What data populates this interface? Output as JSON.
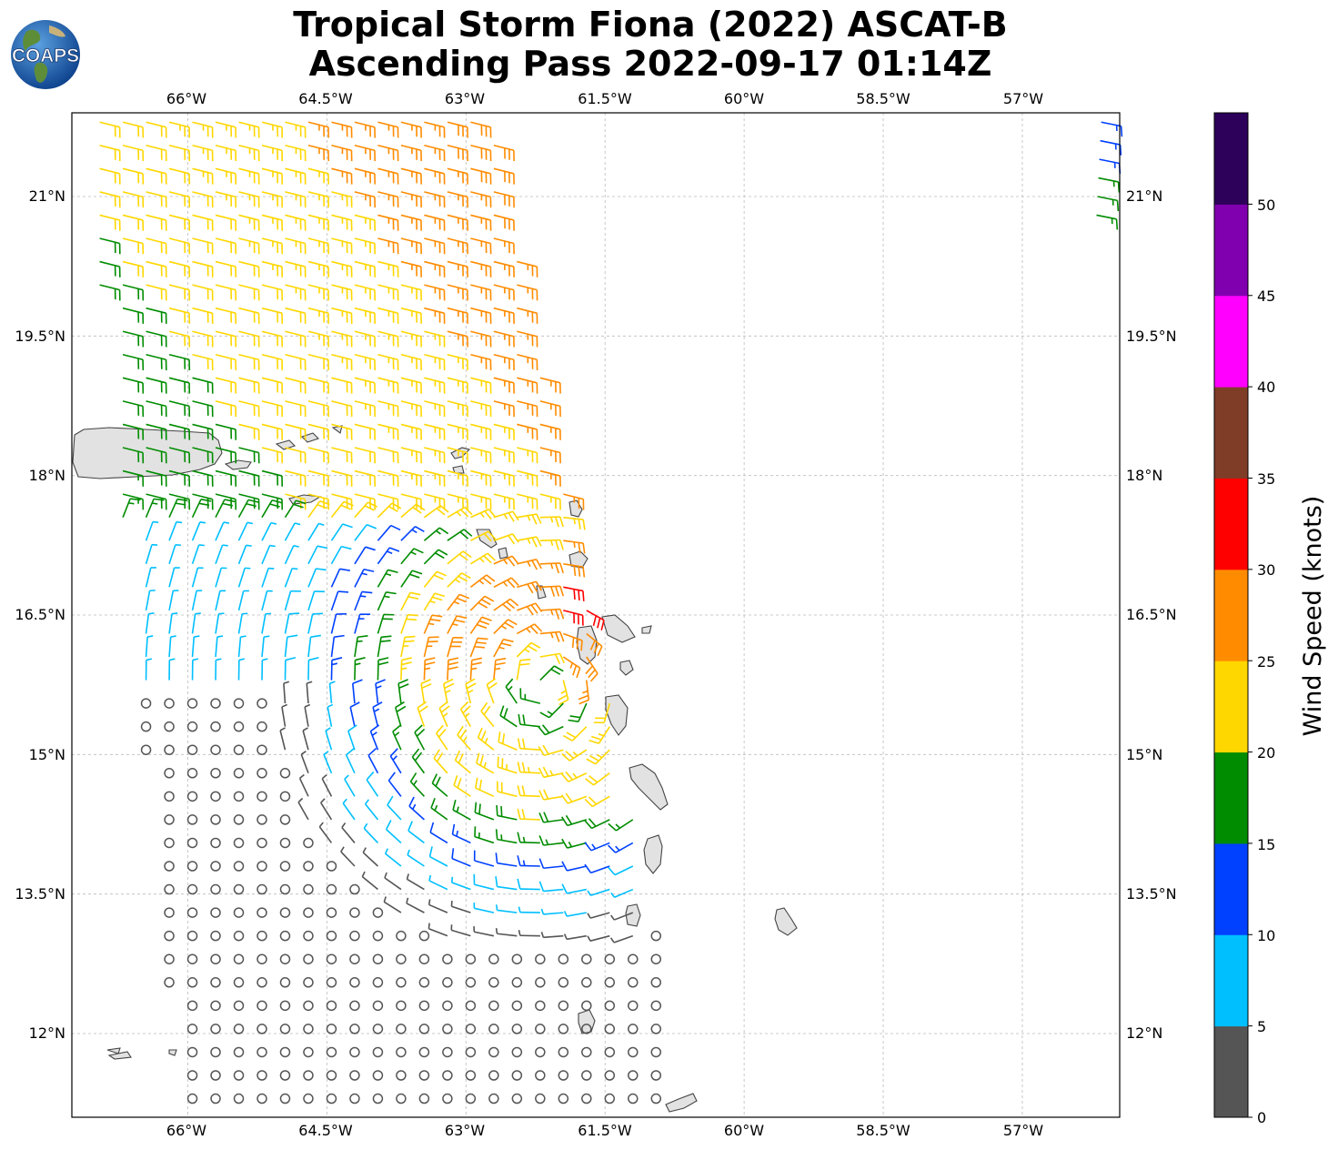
{
  "title": {
    "line1": "Tropical Storm Fiona (2022) ASCAT-B",
    "line2": "Ascending Pass 2022-09-17 01:14Z"
  },
  "logo": {
    "text": "COAPS",
    "icon": "globe-logo-icon"
  },
  "map": {
    "lon_ticks": [
      "66°W",
      "64.5°W",
      "63°W",
      "61.5°W",
      "60°W",
      "58.5°W",
      "57°W"
    ],
    "lat_ticks": [
      "21°N",
      "19.5°N",
      "18°N",
      "16.5°N",
      "15°N",
      "13.5°N",
      "12°N"
    ],
    "gridlines": true,
    "extent": {
      "lon_min": -67.25,
      "lon_max": -55.95,
      "lat_min": 11.1,
      "lat_max": 21.9
    },
    "storm_center": {
      "lon": -62.15,
      "lat": 15.75
    }
  },
  "colorbar": {
    "label": "Wind Speed (knots)",
    "ticks": [
      "0",
      "5",
      "10",
      "15",
      "20",
      "25",
      "30",
      "35",
      "40",
      "45",
      "50"
    ],
    "bins": [
      {
        "range": "0-5",
        "color": "#555555"
      },
      {
        "range": "5-10",
        "color": "#00bfff"
      },
      {
        "range": "10-15",
        "color": "#0040ff"
      },
      {
        "range": "15-20",
        "color": "#008c00"
      },
      {
        "range": "20-25",
        "color": "#ffd700"
      },
      {
        "range": "25-30",
        "color": "#ff8c00"
      },
      {
        "range": "30-35",
        "color": "#ff0000"
      },
      {
        "range": "35-40",
        "color": "#7f3c27"
      },
      {
        "range": "40-45",
        "color": "#ff00ff"
      },
      {
        "range": "45-50",
        "color": "#8000b0"
      },
      {
        "range": "50+",
        "color": "#2d005a"
      }
    ]
  }
}
